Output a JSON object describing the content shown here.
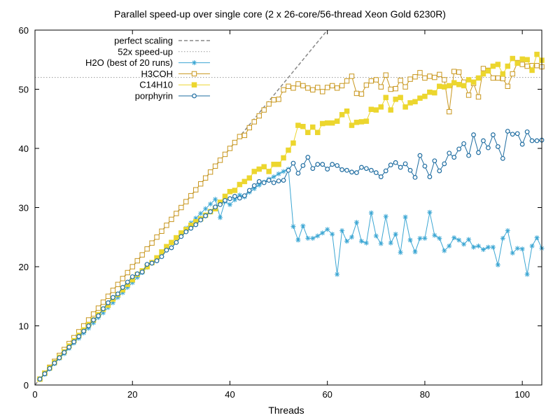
{
  "chart_data": {
    "type": "line",
    "title": "Parallel speed-up over single core (2 x 26-core/56-thread Xeon Gold 6230R)",
    "xlabel": "Threads",
    "ylabel": "",
    "xlim": [
      0,
      104
    ],
    "ylim": [
      0,
      60
    ],
    "xticks": [
      0,
      20,
      40,
      60,
      80,
      100
    ],
    "yticks": [
      0,
      10,
      20,
      30,
      40,
      50,
      60
    ],
    "legend_position": "top-left",
    "reference_lines": [
      {
        "name": "perfect scaling",
        "kind": "diagonal",
        "slope": 1,
        "color": "#888888",
        "dash": "dashed"
      },
      {
        "name": "52x speed-up",
        "kind": "horizontal",
        "y": 52,
        "color": "#999999",
        "dash": "dotted"
      }
    ],
    "series": [
      {
        "name": "H2O (best of 20 runs)",
        "color": "#3ba6d3",
        "marker": "star",
        "x": [
          1,
          2,
          3,
          4,
          5,
          6,
          7,
          8,
          9,
          10,
          11,
          12,
          13,
          14,
          15,
          16,
          17,
          18,
          19,
          20,
          21,
          22,
          23,
          24,
          25,
          26,
          27,
          28,
          29,
          30,
          31,
          32,
          33,
          34,
          35,
          36,
          37,
          38,
          39,
          40,
          41,
          42,
          43,
          44,
          45,
          46,
          47,
          48,
          49,
          50,
          51,
          52,
          53,
          54,
          55,
          56,
          57,
          58,
          59,
          60,
          61,
          62,
          63,
          64,
          65,
          66,
          67,
          68,
          69,
          70,
          71,
          72,
          73,
          74,
          75,
          76,
          77,
          78,
          79,
          80,
          81,
          82,
          83,
          84,
          85,
          86,
          87,
          88,
          89,
          90,
          91,
          92,
          93,
          94,
          95,
          96,
          97,
          98,
          99,
          100,
          101,
          102,
          103,
          104
        ],
        "values": [
          1,
          1.8,
          2.7,
          3.6,
          4.5,
          5.3,
          6.2,
          7.1,
          7.9,
          8.8,
          9.6,
          10.5,
          11.4,
          12.2,
          13.1,
          13.9,
          14.8,
          15.6,
          16.5,
          17.3,
          18.2,
          19,
          19.9,
          20.7,
          21.5,
          22.4,
          23.2,
          24.1,
          24.9,
          25.7,
          26.5,
          27.4,
          28.2,
          29,
          29.8,
          30.6,
          31.4,
          28.3,
          31,
          30.5,
          31.3,
          32.1,
          31.8,
          32.6,
          33.2,
          33.8,
          34.3,
          34.8,
          35.2,
          35.7,
          36.1,
          36.5,
          26.8,
          24.5,
          26.9,
          24.8,
          24.8,
          25.2,
          25.7,
          26.3,
          25.5,
          18.7,
          26.1,
          24.3,
          25,
          27.5,
          24.3,
          24,
          29.1,
          25.2,
          23.9,
          28.5,
          24,
          25.5,
          22.4,
          28.4,
          24.5,
          22.5,
          24.8,
          24.8,
          29.2,
          25.3,
          24.8,
          22.7,
          23.5,
          24.9,
          24.5,
          23.8,
          24.6,
          23.3,
          23.5,
          22.9,
          23.3,
          23.3,
          20.3,
          24.8,
          26.1,
          22.3,
          23.1,
          23,
          18.7,
          23.5,
          24.9,
          23.1
        ]
      },
      {
        "name": "H3COH",
        "color": "#c8961c",
        "marker": "open-square",
        "x": [
          1,
          2,
          3,
          4,
          5,
          6,
          7,
          8,
          9,
          10,
          11,
          12,
          13,
          14,
          15,
          16,
          17,
          18,
          19,
          20,
          21,
          22,
          23,
          24,
          25,
          26,
          27,
          28,
          29,
          30,
          31,
          32,
          33,
          34,
          35,
          36,
          37,
          38,
          39,
          40,
          41,
          42,
          43,
          44,
          45,
          46,
          47,
          48,
          49,
          50,
          51,
          52,
          53,
          54,
          55,
          56,
          57,
          58,
          59,
          60,
          61,
          62,
          63,
          64,
          65,
          66,
          67,
          68,
          69,
          70,
          71,
          72,
          73,
          74,
          75,
          76,
          77,
          78,
          79,
          80,
          81,
          82,
          83,
          84,
          85,
          86,
          87,
          88,
          89,
          90,
          91,
          92,
          93,
          94,
          95,
          96,
          97,
          98,
          99,
          100,
          101,
          102,
          103,
          104
        ],
        "values": [
          1,
          2,
          3,
          4,
          5,
          6,
          7,
          8,
          9,
          10,
          11,
          12,
          13,
          14,
          15,
          16,
          17,
          18,
          19,
          20,
          21,
          22,
          23,
          24,
          25,
          26,
          27,
          28,
          29,
          30,
          31,
          32,
          33,
          34,
          35,
          36,
          37,
          38,
          39,
          40,
          41,
          42,
          42.2,
          43.5,
          44.5,
          45.5,
          46.5,
          47.5,
          48.2,
          48.3,
          49.9,
          50.5,
          50.2,
          50.9,
          50.6,
          50.2,
          49.9,
          50.3,
          49.6,
          50.3,
          50.6,
          50.2,
          50.6,
          51.4,
          52.2,
          49.3,
          49.2,
          50.7,
          51.4,
          51.6,
          50.4,
          52.4,
          50,
          50.1,
          51.5,
          50.4,
          51.7,
          52.1,
          52.8,
          51.9,
          52.2,
          52,
          52.5,
          51.6,
          46.2,
          53,
          52.9,
          51.2,
          49,
          51,
          48.7,
          53.5,
          53.2,
          51.9,
          51.9,
          51.8,
          50.5,
          52.6,
          54.5,
          54.2,
          53.9,
          54,
          54,
          53.8
        ]
      },
      {
        "name": "C14H10",
        "color": "#ecd62e",
        "marker": "filled-square",
        "x": [
          1,
          2,
          3,
          4,
          5,
          6,
          7,
          8,
          9,
          10,
          11,
          12,
          13,
          14,
          15,
          16,
          17,
          18,
          19,
          20,
          21,
          22,
          23,
          24,
          25,
          26,
          27,
          28,
          29,
          30,
          31,
          32,
          33,
          34,
          35,
          36,
          37,
          38,
          39,
          40,
          41,
          42,
          43,
          44,
          45,
          46,
          47,
          48,
          49,
          50,
          51,
          52,
          53,
          54,
          55,
          56,
          57,
          58,
          59,
          60,
          61,
          62,
          63,
          64,
          65,
          66,
          67,
          68,
          69,
          70,
          71,
          72,
          73,
          74,
          75,
          76,
          77,
          78,
          79,
          80,
          81,
          82,
          83,
          84,
          85,
          86,
          87,
          88,
          89,
          90,
          91,
          92,
          93,
          94,
          95,
          96,
          97,
          98,
          99,
          100,
          101,
          102,
          103,
          104
        ],
        "values": [
          1,
          2,
          2.9,
          3.8,
          4.7,
          5.6,
          6.6,
          7.5,
          8.4,
          9.3,
          10.2,
          11,
          11.9,
          12.8,
          13.5,
          14.5,
          15.3,
          16.1,
          17,
          17.8,
          18.7,
          19.3,
          20,
          20.7,
          21.5,
          22.5,
          23.4,
          24.1,
          24.9,
          25.7,
          26.3,
          27,
          27.6,
          28.1,
          28.7,
          29.3,
          29.8,
          30.9,
          31.9,
          32.7,
          32.9,
          33.9,
          34.4,
          35,
          36.1,
          36.5,
          36.9,
          36.1,
          37.3,
          37.3,
          38.4,
          39.7,
          40.9,
          43.9,
          43.7,
          42.7,
          43.6,
          42.7,
          44.2,
          44.3,
          44.3,
          44.6,
          45.7,
          46.3,
          43.9,
          44.4,
          44.5,
          44.6,
          46.6,
          46.5,
          47,
          48.6,
          46.5,
          48.3,
          48.6,
          47,
          47.7,
          47.9,
          48.5,
          48.8,
          49.5,
          49.4,
          50.5,
          50.4,
          50.6,
          51.1,
          50.8,
          50.6,
          51.6,
          51.2,
          51.9,
          52.6,
          53.1,
          53.9,
          54.2,
          52.6,
          53.9,
          55.2,
          54.4,
          55.1,
          55,
          53.2,
          55.9,
          54.9
        ]
      },
      {
        "name": "porphyrin",
        "color": "#1e6ca0",
        "marker": "open-circle",
        "x": [
          1,
          2,
          3,
          4,
          5,
          6,
          7,
          8,
          9,
          10,
          11,
          12,
          13,
          14,
          15,
          16,
          17,
          18,
          19,
          20,
          21,
          22,
          23,
          24,
          25,
          26,
          27,
          28,
          29,
          30,
          31,
          32,
          33,
          34,
          35,
          36,
          37,
          38,
          39,
          40,
          41,
          42,
          43,
          44,
          45,
          46,
          47,
          48,
          49,
          50,
          51,
          52,
          53,
          54,
          55,
          56,
          57,
          58,
          59,
          60,
          61,
          62,
          63,
          64,
          65,
          66,
          67,
          68,
          69,
          70,
          71,
          72,
          73,
          74,
          75,
          76,
          77,
          78,
          79,
          80,
          81,
          82,
          83,
          84,
          85,
          86,
          87,
          88,
          89,
          90,
          91,
          92,
          93,
          94,
          95,
          96,
          97,
          98,
          99,
          100,
          101,
          102,
          103,
          104
        ],
        "values": [
          1,
          1.9,
          2.8,
          3.7,
          4.6,
          5.5,
          6.4,
          7.3,
          8.2,
          9.1,
          10,
          11,
          11.7,
          12.9,
          13.9,
          14.8,
          15.4,
          16.5,
          17.4,
          18.3,
          18.8,
          19.1,
          20.4,
          20.6,
          21,
          21.7,
          22.8,
          23.2,
          24.1,
          25.1,
          25.9,
          26.5,
          27.1,
          27.9,
          28.6,
          29.3,
          30.1,
          30.5,
          31.2,
          31.5,
          31.9,
          31.6,
          32,
          32.9,
          33.7,
          34.4,
          34.2,
          34.6,
          34.2,
          34.5,
          34.6,
          36.3,
          37.5,
          35.8,
          37.1,
          38.5,
          36.6,
          37.3,
          37.3,
          36.5,
          37.3,
          37.1,
          36.4,
          36.3,
          36,
          35.9,
          36.8,
          36.6,
          36.3,
          35.9,
          35.2,
          36.2,
          37.2,
          37.6,
          36.8,
          37.4,
          36.3,
          35.1,
          38.8,
          37,
          35.2,
          37.9,
          36.2,
          37.4,
          39.2,
          38.5,
          39.9,
          40.8,
          38.8,
          42.3,
          39.3,
          41.3,
          40.1,
          42.3,
          40.3,
          38.3,
          42.9,
          42.4,
          42.5,
          40.7,
          42.8,
          41.3,
          41.3,
          41.4
        ]
      }
    ]
  }
}
